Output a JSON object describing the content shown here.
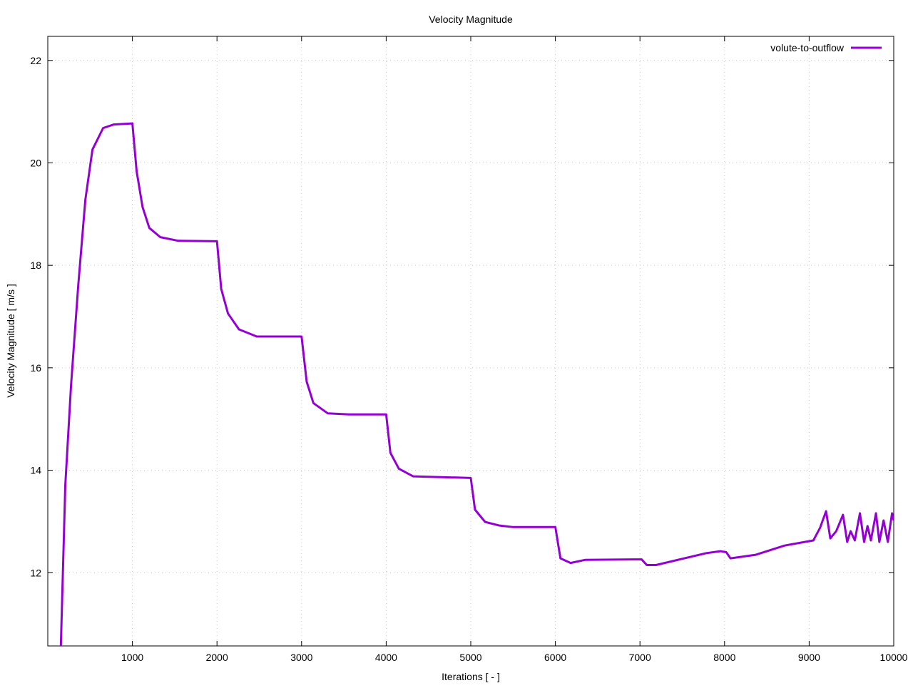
{
  "chart_data": {
    "type": "line",
    "title": "Velocity Magnitude",
    "x_label": "Iterations [ - ]",
    "y_label": "Velocity Magnitude [ m/s ]",
    "xlim": [
      0,
      10000
    ],
    "ylim": [
      10.57,
      22.47
    ],
    "xticks": [
      1000,
      2000,
      3000,
      4000,
      5000,
      6000,
      7000,
      8000,
      9000,
      10000
    ],
    "yticks": [
      12,
      14,
      16,
      18,
      20,
      22
    ],
    "grid": true,
    "legend": "upper right",
    "x": [
      150,
      207,
      275,
      360,
      444,
      528,
      654,
      780,
      1000,
      1050,
      1120,
      1200,
      1330,
      1540,
      2000,
      2050,
      2130,
      2260,
      2470,
      3000,
      3060,
      3140,
      3310,
      3560,
      4000,
      4050,
      4150,
      4320,
      5000,
      5050,
      5170,
      5340,
      5500,
      6000,
      6060,
      6180,
      6350,
      7020,
      7080,
      7190,
      7780,
      7950,
      8020,
      8070,
      8370,
      8710,
      9050,
      9130,
      9200,
      9250,
      9320,
      9400,
      9450,
      9490,
      9540,
      9600,
      9650,
      9690,
      9730,
      9790,
      9830,
      9880,
      9930,
      9980,
      10000
    ],
    "series": [
      {
        "name": "volute-to-outflow",
        "color": "#9400d3",
        "values": [
          10.3,
          13.71,
          15.66,
          17.61,
          19.28,
          20.26,
          20.68,
          20.75,
          20.77,
          19.84,
          19.14,
          18.73,
          18.55,
          18.48,
          18.47,
          17.54,
          17.06,
          16.75,
          16.61,
          16.61,
          15.73,
          15.31,
          15.11,
          15.09,
          15.09,
          14.34,
          14.03,
          13.88,
          13.85,
          13.23,
          12.99,
          12.92,
          12.89,
          12.89,
          12.28,
          12.19,
          12.25,
          12.26,
          12.15,
          12.15,
          12.38,
          12.42,
          12.4,
          12.28,
          12.35,
          12.53,
          12.63,
          12.88,
          13.2,
          12.67,
          12.81,
          13.13,
          12.6,
          12.81,
          12.63,
          13.16,
          12.6,
          12.91,
          12.63,
          13.16,
          12.6,
          13.02,
          12.6,
          13.16,
          13.02
        ]
      }
    ]
  }
}
